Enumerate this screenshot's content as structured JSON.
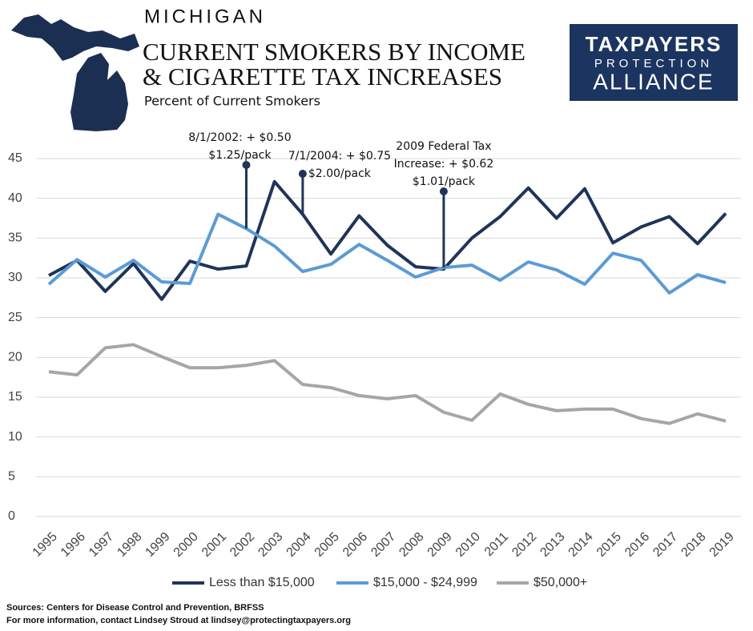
{
  "chart_data": {
    "type": "line",
    "state": "MICHIGAN",
    "title": [
      "CURRENT SMOKERS BY INCOME",
      "& CIGARETTE TAX INCREASES"
    ],
    "subtitle": "Percent of Current Smokers",
    "logo": [
      "TAXPAYERS",
      "PROTECTION",
      "ALLIANCE"
    ],
    "categories": [
      "1995",
      "1996",
      "1997",
      "1998",
      "1999",
      "2000",
      "2001",
      "2002",
      "2003",
      "2004",
      "2005",
      "2006",
      "2007",
      "2008",
      "2009",
      "2010",
      "2011",
      "2012",
      "2013",
      "2014",
      "2015",
      "2016",
      "2017",
      "2018",
      "2019"
    ],
    "series": [
      {
        "name": "Less than $15,000",
        "color": "#1f3458",
        "values": [
          30.3,
          32.2,
          28.3,
          31.8,
          27.3,
          32.1,
          31.1,
          31.5,
          42.1,
          38.0,
          33.0,
          37.8,
          34.1,
          31.4,
          31.1,
          35.0,
          37.7,
          41.3,
          37.5,
          41.2,
          34.4,
          36.4,
          37.7,
          34.3,
          38.1
        ]
      },
      {
        "name": "$15,000 - $24,999",
        "color": "#5b9bd5",
        "values": [
          29.2,
          32.3,
          30.1,
          32.2,
          29.5,
          29.3,
          38.0,
          36.2,
          34.0,
          30.8,
          31.7,
          34.2,
          32.2,
          30.1,
          31.3,
          31.6,
          29.7,
          32.0,
          31.0,
          29.2,
          33.1,
          32.2,
          28.1,
          30.4,
          29.4
        ]
      },
      {
        "name": "$50,000+",
        "color": "#a6a6a6",
        "values": [
          18.2,
          17.8,
          21.2,
          21.6,
          20.1,
          18.7,
          18.7,
          19.0,
          19.6,
          16.6,
          16.2,
          15.2,
          14.8,
          15.2,
          13.1,
          12.1,
          15.4,
          14.1,
          13.3,
          13.5,
          13.5,
          12.3,
          11.7,
          12.9,
          12.0
        ]
      }
    ],
    "ylim": [
      0,
      45
    ],
    "yticks": [
      0,
      5,
      10,
      15,
      20,
      25,
      30,
      35,
      40,
      45
    ],
    "grid": true,
    "legend": "bottom",
    "annotations": [
      {
        "category": "2002",
        "lines": [
          "8/1/2002: + $0.50",
          "$1.25/pack"
        ]
      },
      {
        "category": "2004",
        "lines": [
          "7/1/2004: + $0.75",
          "$2.00/pack"
        ]
      },
      {
        "category": "2009",
        "lines": [
          "2009 Federal Tax",
          "Increase: + $0.62",
          "$1.01/pack"
        ]
      }
    ],
    "sources": [
      "Sources:  Centers for Disease Control and Prevention, BRFSS",
      "For more information, contact Lindsey Stroud at lindsey@protectingtaxpayers.org"
    ]
  }
}
